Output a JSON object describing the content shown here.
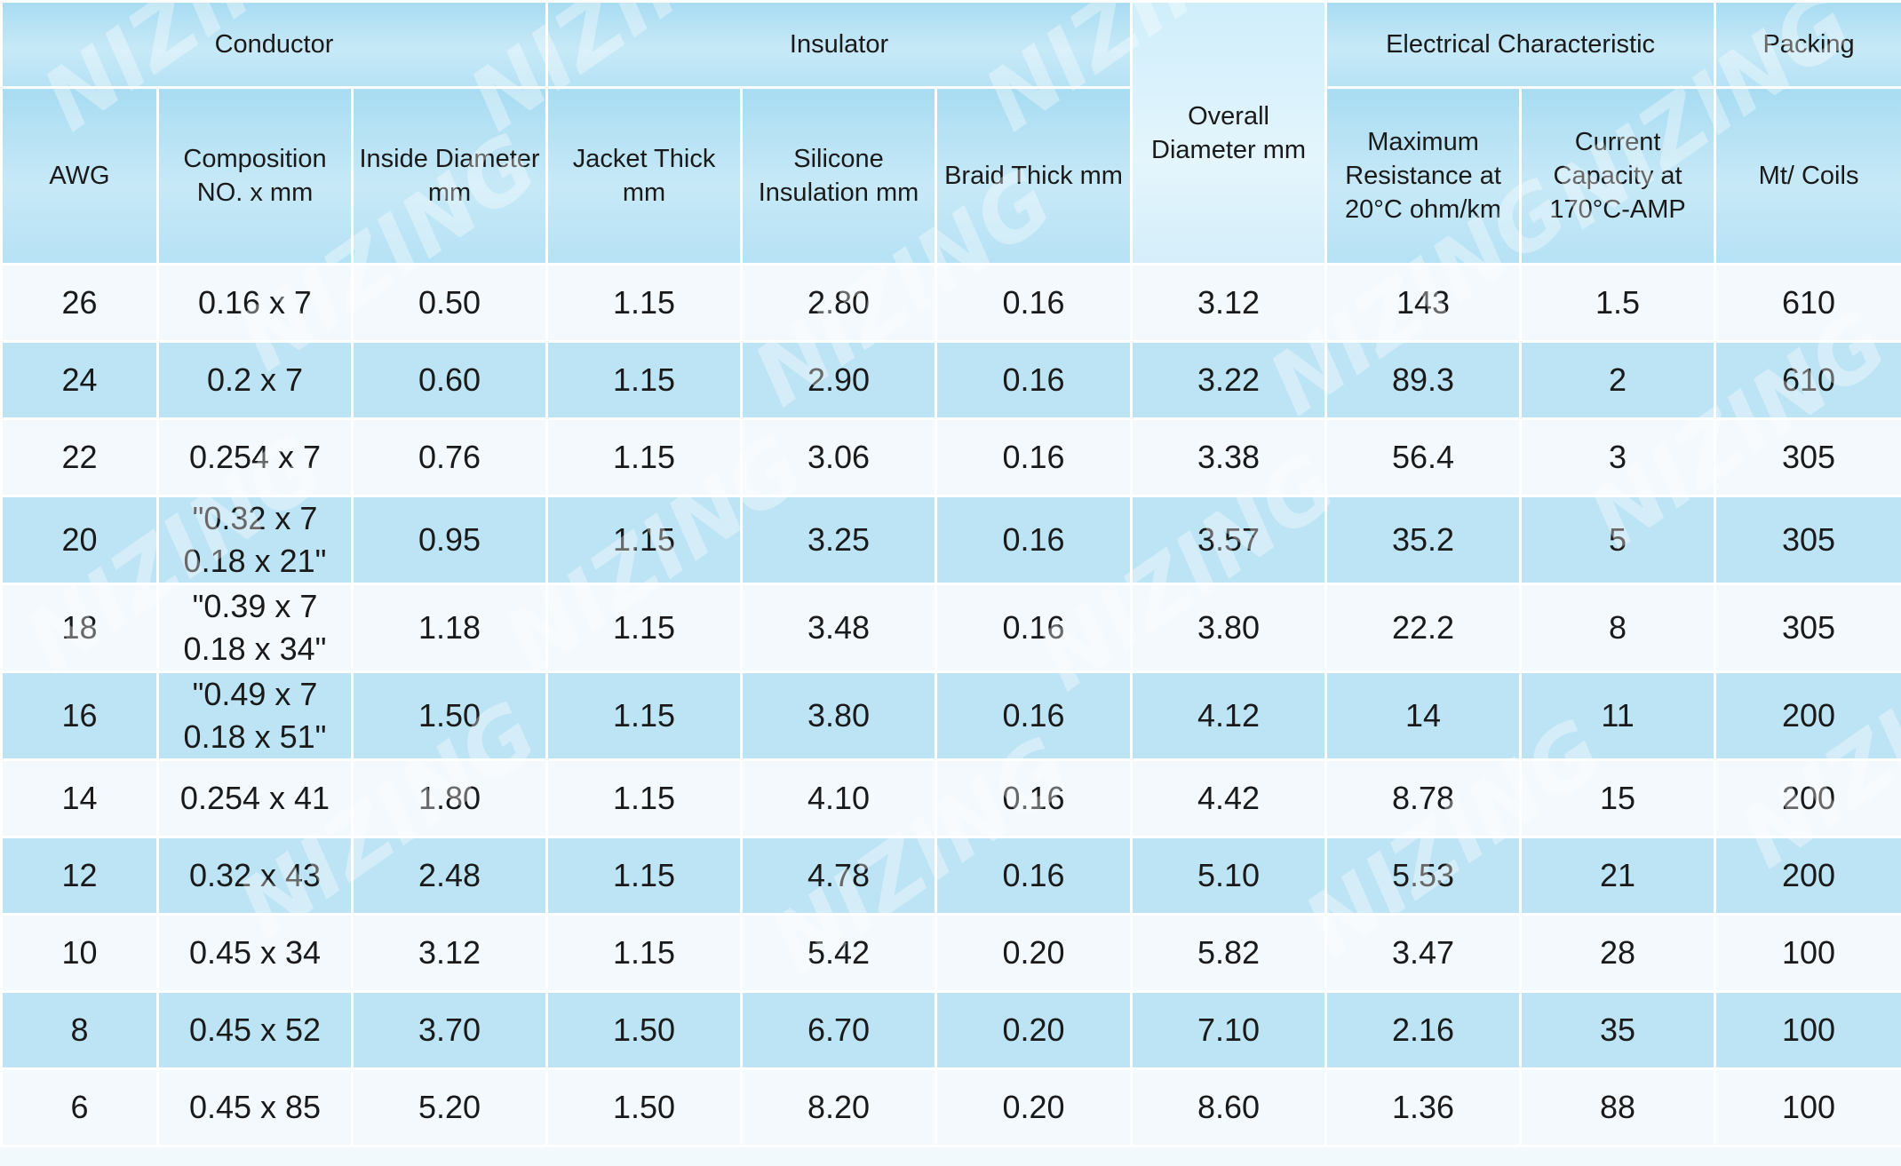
{
  "header": {
    "groups": {
      "conductor": "Conductor",
      "insulator": "Insulator",
      "overall": "Overall Diameter mm",
      "electrical": "Electrical Characteristic",
      "packing": "Packing"
    },
    "columns": {
      "awg": "AWG",
      "composition": "Composition NO. x mm",
      "inside_diameter": "Inside Diameter mm",
      "jacket_thick": "Jacket Thick mm",
      "silicone_insulation": "Silicone Insulation mm",
      "braid_thick": "Braid Thick mm",
      "max_resistance": "Maximum Resistance at 20°C ohm/km",
      "current_capacity": "Current Capacity at 170°C-AMP",
      "mt_coils": "Mt/ Coils"
    }
  },
  "rows": [
    {
      "awg": "26",
      "composition": "0.16 x 7",
      "inside_diameter": "0.50",
      "jacket_thick": "1.15",
      "silicone_insulation": "2.80",
      "braid_thick": "0.16",
      "overall_diameter": "3.12",
      "max_resistance": "143",
      "current_capacity": "1.5",
      "mt_coils": "610"
    },
    {
      "awg": "24",
      "composition": "0.2 x 7",
      "inside_diameter": "0.60",
      "jacket_thick": "1.15",
      "silicone_insulation": "2.90",
      "braid_thick": "0.16",
      "overall_diameter": "3.22",
      "max_resistance": "89.3",
      "current_capacity": "2",
      "mt_coils": "610"
    },
    {
      "awg": "22",
      "composition": "0.254 x 7",
      "inside_diameter": "0.76",
      "jacket_thick": "1.15",
      "silicone_insulation": "3.06",
      "braid_thick": "0.16",
      "overall_diameter": "3.38",
      "max_resistance": "56.4",
      "current_capacity": "3",
      "mt_coils": "305"
    },
    {
      "awg": "20",
      "composition": "\"0.32 x 7 0.18 x 21\"",
      "inside_diameter": "0.95",
      "jacket_thick": "1.15",
      "silicone_insulation": "3.25",
      "braid_thick": "0.16",
      "overall_diameter": "3.57",
      "max_resistance": "35.2",
      "current_capacity": "5",
      "mt_coils": "305"
    },
    {
      "awg": "18",
      "composition": "\"0.39 x 7 0.18 x 34\"",
      "inside_diameter": "1.18",
      "jacket_thick": "1.15",
      "silicone_insulation": "3.48",
      "braid_thick": "0.16",
      "overall_diameter": "3.80",
      "max_resistance": "22.2",
      "current_capacity": "8",
      "mt_coils": "305"
    },
    {
      "awg": "16",
      "composition": "\"0.49 x 7 0.18 x 51\"",
      "inside_diameter": "1.50",
      "jacket_thick": "1.15",
      "silicone_insulation": "3.80",
      "braid_thick": "0.16",
      "overall_diameter": "4.12",
      "max_resistance": "14",
      "current_capacity": "11",
      "mt_coils": "200"
    },
    {
      "awg": "14",
      "composition": "0.254 x 41",
      "inside_diameter": "1.80",
      "jacket_thick": "1.15",
      "silicone_insulation": "4.10",
      "braid_thick": "0.16",
      "overall_diameter": "4.42",
      "max_resistance": "8.78",
      "current_capacity": "15",
      "mt_coils": "200"
    },
    {
      "awg": "12",
      "composition": "0.32 x 43",
      "inside_diameter": "2.48",
      "jacket_thick": "1.15",
      "silicone_insulation": "4.78",
      "braid_thick": "0.16",
      "overall_diameter": "5.10",
      "max_resistance": "5.53",
      "current_capacity": "21",
      "mt_coils": "200"
    },
    {
      "awg": "10",
      "composition": "0.45 x 34",
      "inside_diameter": "3.12",
      "jacket_thick": "1.15",
      "silicone_insulation": "5.42",
      "braid_thick": "0.20",
      "overall_diameter": "5.82",
      "max_resistance": "3.47",
      "current_capacity": "28",
      "mt_coils": "100"
    },
    {
      "awg": "8",
      "composition": "0.45 x 52",
      "inside_diameter": "3.70",
      "jacket_thick": "1.50",
      "silicone_insulation": "6.70",
      "braid_thick": "0.20",
      "overall_diameter": "7.10",
      "max_resistance": "2.16",
      "current_capacity": "35",
      "mt_coils": "100"
    },
    {
      "awg": "6",
      "composition": "0.45 x 85",
      "inside_diameter": "5.20",
      "jacket_thick": "1.50",
      "silicone_insulation": "8.20",
      "braid_thick": "0.20",
      "overall_diameter": "8.60",
      "max_resistance": "1.36",
      "current_capacity": "88",
      "mt_coils": "100"
    }
  ],
  "watermark": {
    "text": "NIZING"
  }
}
